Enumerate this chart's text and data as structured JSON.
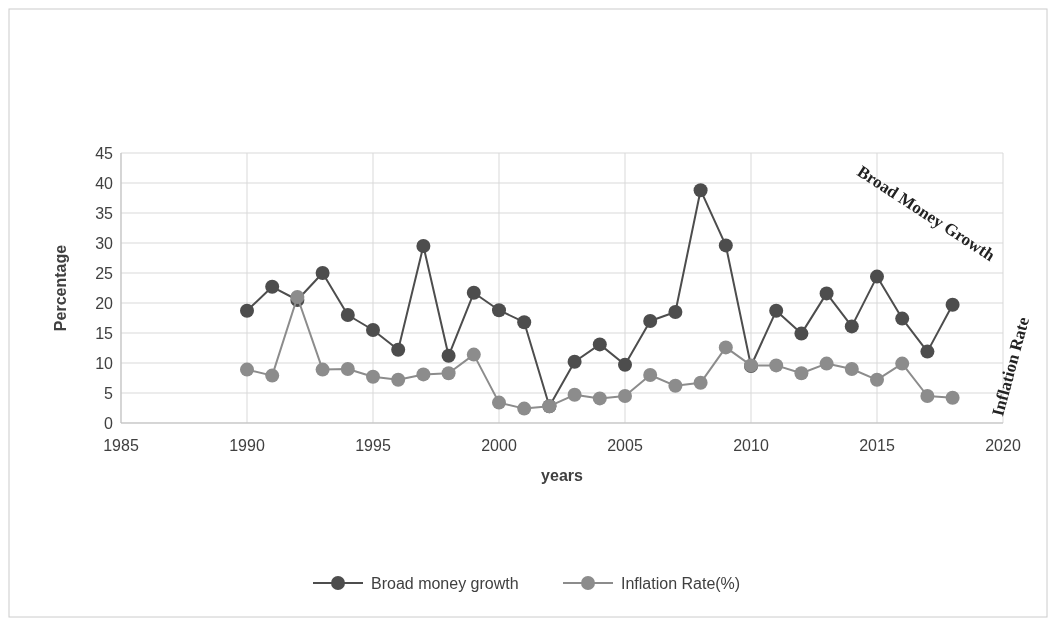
{
  "chart_data": {
    "type": "line",
    "xlabel": "years",
    "ylabel": "Percentage",
    "x": [
      1990,
      1991,
      1992,
      1993,
      1994,
      1995,
      1996,
      1997,
      1998,
      1999,
      2000,
      2001,
      2002,
      2003,
      2004,
      2005,
      2006,
      2007,
      2008,
      2009,
      2010,
      2011,
      2012,
      2013,
      2014,
      2015,
      2016,
      2017,
      2018
    ],
    "series": [
      {
        "name": "Broad money growth",
        "color": "#4d4d4d",
        "values": [
          18.7,
          22.7,
          20.5,
          25,
          18,
          15.5,
          12.2,
          29.5,
          11.2,
          21.7,
          18.8,
          16.8,
          2.8,
          10.2,
          13.1,
          9.7,
          17,
          18.5,
          38.8,
          29.6,
          9.5,
          18.7,
          14.9,
          21.6,
          16.1,
          24.4,
          17.4,
          11.9,
          19.7
        ]
      },
      {
        "name": "Inflation Rate(%)",
        "color": "#8c8c8c",
        "values": [
          8.9,
          7.9,
          21,
          8.9,
          9,
          7.7,
          7.2,
          8.1,
          8.3,
          11.4,
          3.4,
          2.4,
          2.8,
          4.7,
          4.1,
          4.5,
          8,
          6.2,
          6.7,
          12.6,
          9.6,
          9.6,
          8.3,
          9.9,
          9,
          7.2,
          9.9,
          4.5,
          4.2
        ]
      }
    ],
    "xlim": [
      1985,
      2020
    ],
    "xticks": [
      1985,
      1990,
      1995,
      2000,
      2005,
      2010,
      2015,
      2020
    ],
    "ylim": [
      0,
      45
    ],
    "yticks": [
      0,
      5,
      10,
      15,
      20,
      25,
      30,
      35,
      40,
      45
    ],
    "grid": true,
    "legend": "bottom",
    "marker": "circle",
    "line_style": "solid",
    "annotations": [
      "Broad Money Growth",
      "Inflation Rate"
    ]
  }
}
